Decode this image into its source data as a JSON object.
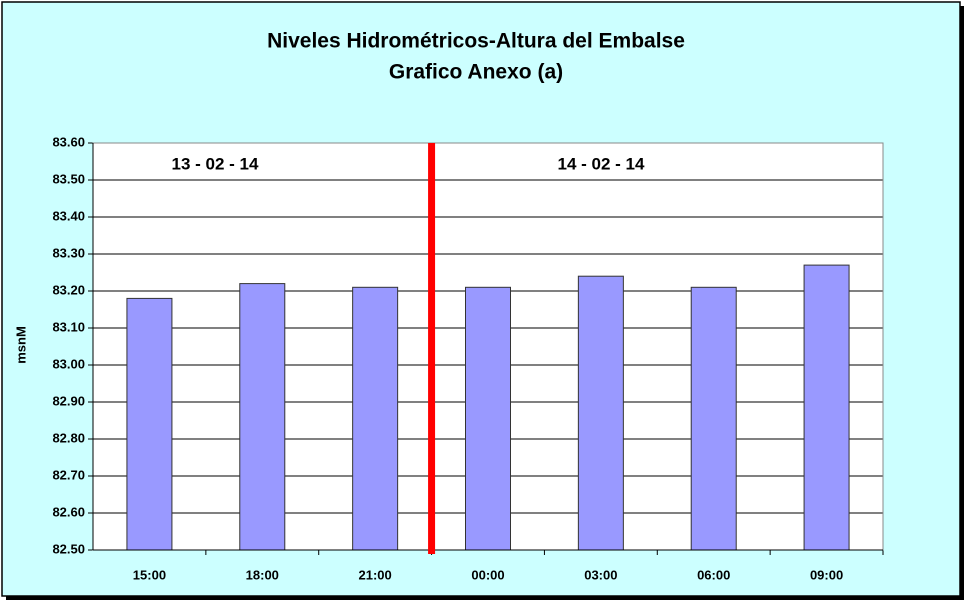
{
  "chart_data": {
    "type": "bar",
    "title": "Niveles Hidrométricos-Altura del Embalse",
    "subtitle": "Grafico Anexo (a)",
    "y_label": "msnM",
    "categories": [
      "15:00",
      "18:00",
      "21:00",
      "00:00",
      "03:00",
      "06:00",
      "09:00"
    ],
    "values": [
      83.18,
      83.22,
      83.21,
      83.21,
      83.24,
      83.21,
      83.27
    ],
    "color": "#9999ff",
    "ylim": [
      82.5,
      83.6
    ],
    "yticks": [
      {
        "value": 82.5,
        "label": "82.50"
      },
      {
        "value": 82.6,
        "label": "82.60"
      },
      {
        "value": 82.7,
        "label": "82.70"
      },
      {
        "value": 82.8,
        "label": "82.80"
      },
      {
        "value": 82.9,
        "label": "82.90"
      },
      {
        "value": 83,
        "label": "83.00"
      },
      {
        "value": 83.1,
        "label": "83.10"
      },
      {
        "value": 83.2,
        "label": "83.20"
      },
      {
        "value": 83.3,
        "label": "83.30"
      },
      {
        "value": 83.4,
        "label": "83.40"
      },
      {
        "value": 83.5,
        "label": "83.50"
      },
      {
        "value": 83.6,
        "label": "83.60"
      }
    ],
    "grid": true,
    "annotations": [
      "13 - 02 - 14",
      "14 - 02 - 14"
    ]
  }
}
